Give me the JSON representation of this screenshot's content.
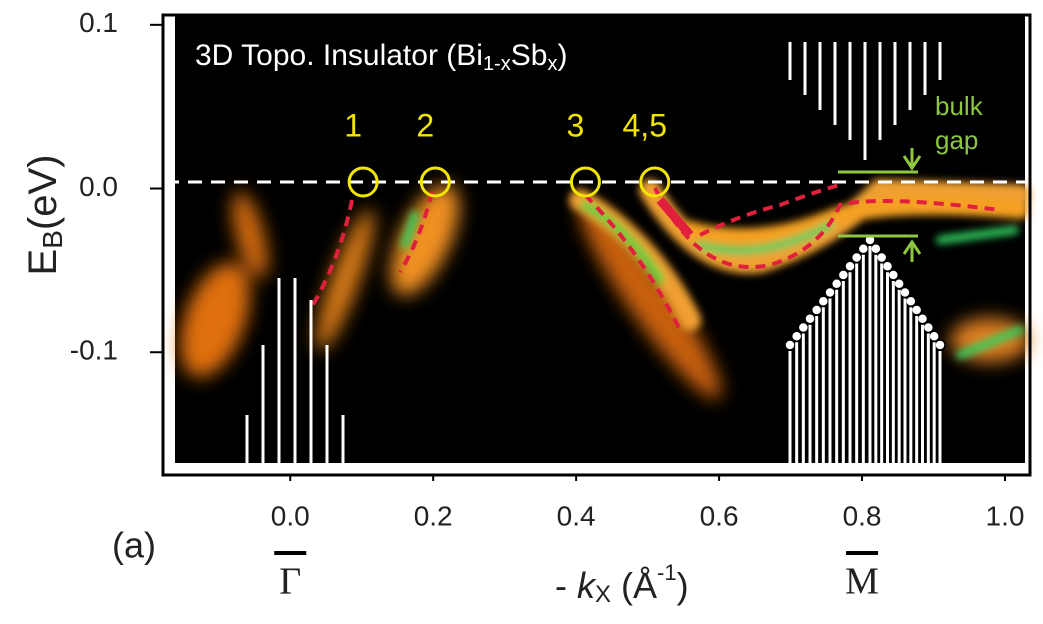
{
  "chart_data": {
    "type": "arpes",
    "title_parts": [
      "3D Topo. Insulator (Bi",
      "1-x",
      "Sb",
      "x",
      ")"
    ],
    "ylabel_parts": [
      "E",
      "B",
      "(eV)"
    ],
    "xlabel_parts": [
      "- ",
      "k",
      "X",
      " (Å",
      "-1",
      ")"
    ],
    "panel_label": "(a)",
    "xlim": [
      -0.178,
      1.035
    ],
    "ylim": [
      -0.175,
      0.106
    ],
    "xticks": [
      {
        "value": 0,
        "label": "0.0"
      },
      0.2,
      0.4,
      0.6,
      0.8,
      {
        "value": 1,
        "label": "1.0"
      }
    ],
    "yticks": [
      0.1,
      {
        "value": 0,
        "label": "0.0"
      },
      -0.1
    ],
    "fermi_level": 0.004,
    "crossings": [
      {
        "label": "1",
        "x": 0.102
      },
      {
        "label": "2",
        "x": 0.203
      },
      {
        "label": "3",
        "x": 0.413
      },
      {
        "label": "4,5",
        "x": 0.51
      }
    ],
    "crossing_color": "#f2e600",
    "symmetry_points": [
      {
        "label": "Γ",
        "x": 0
      },
      {
        "label": "M",
        "x": 0.8
      }
    ],
    "gap_annotation": [
      "bulk",
      "gap"
    ],
    "gap_color": "#8dc63f"
  }
}
